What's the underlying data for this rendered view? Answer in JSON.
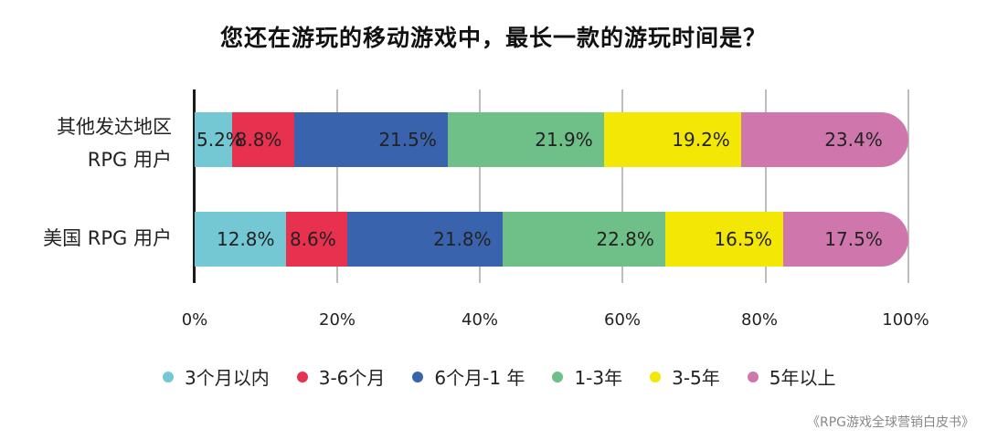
{
  "chart_data": {
    "type": "bar",
    "orientation": "horizontal",
    "stacked": true,
    "title": "您还在游玩的移动游戏中，最长一款的游玩时间是？",
    "categories": [
      "其他发达地区 RPG 用户",
      "美国 RPG 用户"
    ],
    "category_lines": [
      [
        "其他发达地区",
        "RPG 用户"
      ],
      [
        "美国 RPG 用户"
      ]
    ],
    "series": [
      {
        "name": "3个月以内",
        "color": "#74c8d4",
        "values": [
          5.2,
          12.8
        ]
      },
      {
        "name": "3-6个月",
        "color": "#e8304f",
        "values": [
          8.8,
          8.6
        ]
      },
      {
        "name": "6个月-1 年",
        "color": "#3a63ae",
        "values": [
          21.5,
          21.8
        ]
      },
      {
        "name": "1-3年",
        "color": "#6fbf88",
        "values": [
          21.9,
          22.8
        ]
      },
      {
        "name": "3-5年",
        "color": "#f3e805",
        "values": [
          19.2,
          16.5
        ]
      },
      {
        "name": "5年以上",
        "color": "#cf77ac",
        "values": [
          23.4,
          17.5
        ]
      }
    ],
    "value_labels": [
      [
        "5.2%",
        "8.8%",
        "21.5%",
        "21.9%",
        "19.2%",
        "23.4%"
      ],
      [
        "12.8%",
        "8.6%",
        "21.8%",
        "22.8%",
        "16.5%",
        "17.5%"
      ]
    ],
    "xlim": [
      0,
      100
    ],
    "xticks": [
      "0%",
      "20%",
      "40%",
      "60%",
      "80%",
      "100%"
    ],
    "xlabel": "",
    "ylabel": "",
    "grid": true,
    "legend_position": "bottom"
  },
  "source": "《RPG游戏全球营销白皮书》"
}
